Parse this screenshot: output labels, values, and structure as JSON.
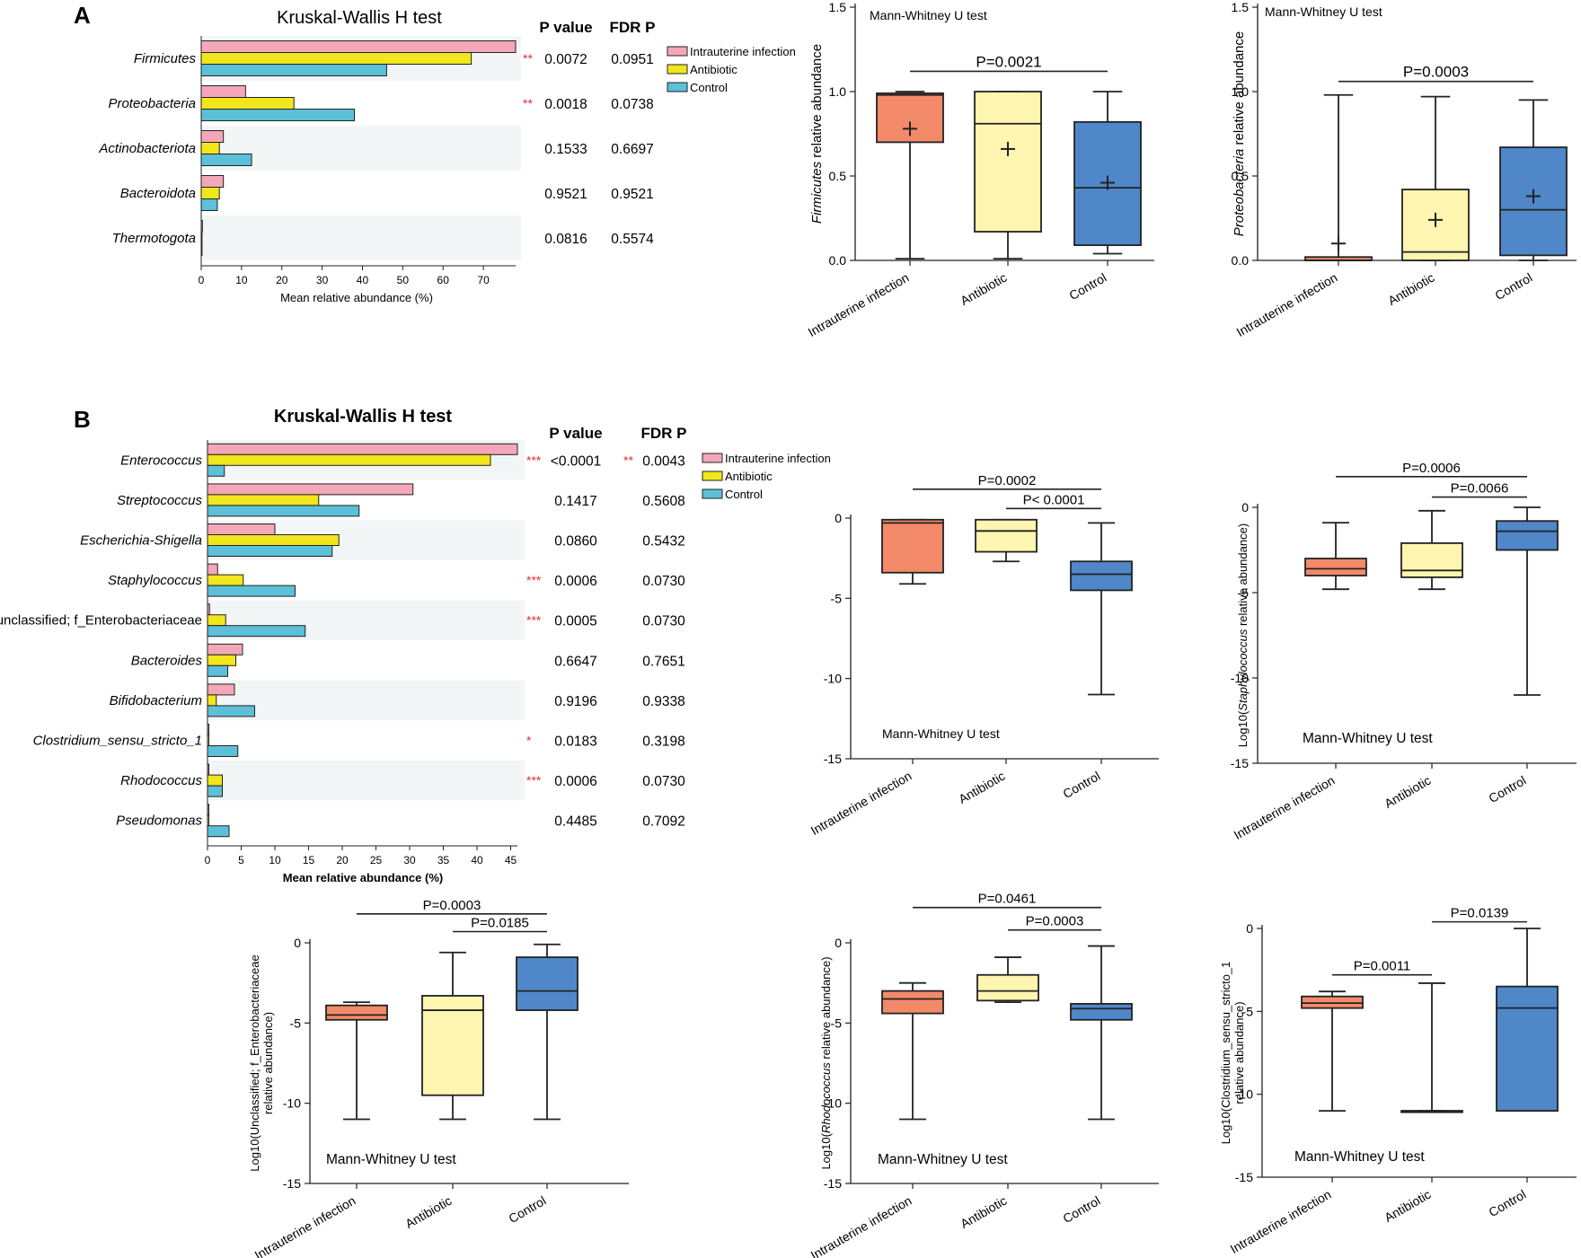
{
  "colors": {
    "intrauterine": "#f4a7b9",
    "antibiotic": "#f2e61c",
    "control": "#5bc0d8",
    "box_intrauterine": "#f28a6a",
    "box_antibiotic": "#fdf5b0",
    "box_control": "#4f87c9",
    "stripe": "#f3f6f6",
    "star": "#e03030"
  },
  "panel_a": {
    "label": "A",
    "kw": {
      "title": "Kruskal-Wallis H test",
      "p_header": "P value",
      "fdr_header": "FDR P",
      "xlabel": "Mean relative abundance (%)",
      "legend": [
        "Intrauterine infection",
        "Antibiotic",
        "Control"
      ],
      "ticks": [
        "0",
        "10",
        "20",
        "30",
        "40",
        "50",
        "60",
        "70"
      ],
      "xmax": 78,
      "rows": [
        {
          "name": "Firmicutes",
          "values": [
            78,
            67,
            46
          ],
          "sig": "**",
          "p": "0.0072",
          "fdr": "0.0951"
        },
        {
          "name": "Proteobacteria",
          "values": [
            11,
            23,
            38
          ],
          "sig": "**",
          "p": "0.0018",
          "fdr": "0.0738"
        },
        {
          "name": "Actinobacteriota",
          "values": [
            5.5,
            4.5,
            12.5
          ],
          "sig": "",
          "p": "0.1533",
          "fdr": "0.6697"
        },
        {
          "name": "Bacteroidota",
          "values": [
            5.5,
            4.5,
            4
          ],
          "sig": "",
          "p": "0.9521",
          "fdr": "0.9521"
        },
        {
          "name": "Thermotogota",
          "values": [
            0.3,
            0.2,
            0.2
          ],
          "sig": "",
          "p": "0.0816",
          "fdr": "0.5574"
        }
      ]
    },
    "box1": {
      "test_label": "Mann-Whitney U test",
      "ylabel_italic": "Firmicutes",
      "ylabel_rest": " relative abundance",
      "yticks": [
        "0.0",
        "0.5",
        "1.0",
        "1.5"
      ],
      "ylim": [
        0,
        1.5
      ],
      "categories": [
        "Intrauterine infection",
        "Antibiotic",
        "Control"
      ],
      "boxes": [
        {
          "min": 0.01,
          "q1": 0.7,
          "median": 0.98,
          "q3": 0.99,
          "max": 1.0,
          "mean": 0.78
        },
        {
          "min": 0.01,
          "q1": 0.17,
          "median": 0.81,
          "q3": 1.0,
          "max": 1.0,
          "mean": 0.66
        },
        {
          "min": 0.04,
          "q1": 0.09,
          "median": 0.43,
          "q3": 0.82,
          "max": 1.0,
          "mean": 0.46
        }
      ],
      "brackets": [
        {
          "from": 0,
          "to": 2,
          "level": 1.12,
          "label": "P=0.0021"
        }
      ]
    },
    "box2": {
      "test_label": "Mann-Whitney U test",
      "ylabel_italic": "Proteobacteria",
      "ylabel_rest": " relative abundance",
      "yticks": [
        "0.0",
        "0.5",
        "1.0",
        "1.5"
      ],
      "ylim": [
        0,
        1.5
      ],
      "categories": [
        "Intrauterine infection",
        "Antibiotic",
        "Control"
      ],
      "boxes": [
        {
          "min": 0.0,
          "q1": 0.0,
          "median": 0.0,
          "q3": 0.02,
          "max": 0.98,
          "mean": 0.1
        },
        {
          "min": 0.0,
          "q1": 0.0,
          "median": 0.05,
          "q3": 0.42,
          "max": 0.97,
          "mean": 0.24
        },
        {
          "min": 0.0,
          "q1": 0.03,
          "median": 0.3,
          "q3": 0.67,
          "max": 0.95,
          "mean": 0.38
        }
      ],
      "brackets": [
        {
          "from": 0,
          "to": 2,
          "level": 1.06,
          "label": "P=0.0003"
        }
      ]
    }
  },
  "panel_b": {
    "label": "B",
    "kw": {
      "title": "Kruskal-Wallis H test",
      "p_header": "P value",
      "fdr_header": "FDR P",
      "xlabel": "Mean relative abundance (%)",
      "legend": [
        "Intrauterine infection",
        "Antibiotic",
        "Control"
      ],
      "ticks": [
        "0",
        "5",
        "10",
        "15",
        "20",
        "25",
        "30",
        "35",
        "40",
        "45"
      ],
      "xmax": 46,
      "rows": [
        {
          "name": "Enterococcus",
          "values": [
            46,
            42,
            2.5
          ],
          "sig": "***",
          "p": "<0.0001",
          "fdr_sig": "**",
          "fdr": "0.0043"
        },
        {
          "name": "Streptococcus",
          "values": [
            30.5,
            16.5,
            22.5
          ],
          "sig": "",
          "p": "0.1417",
          "fdr_sig": "",
          "fdr": "0.5608"
        },
        {
          "name": "Escherichia-Shigella",
          "values": [
            10,
            19.5,
            18.5
          ],
          "sig": "",
          "p": "0.0860",
          "fdr_sig": "",
          "fdr": "0.5432"
        },
        {
          "name": "Staphylococcus",
          "values": [
            1.5,
            5.3,
            13
          ],
          "sig": "***",
          "p": "0.0006",
          "fdr_sig": "",
          "fdr": "0.0730"
        },
        {
          "name": "unclassified; f_Enterobacteriaceae",
          "values": [
            0.3,
            2.7,
            14.5
          ],
          "sig": "***",
          "p": "0.0005",
          "fdr_sig": "",
          "fdr": "0.0730"
        },
        {
          "name": "Bacteroides",
          "values": [
            5.2,
            4.2,
            3
          ],
          "sig": "",
          "p": "0.6647",
          "fdr_sig": "",
          "fdr": "0.7651"
        },
        {
          "name": "Bifidobacterium",
          "values": [
            4,
            1.3,
            7
          ],
          "sig": "",
          "p": "0.9196",
          "fdr_sig": "",
          "fdr": "0.9338"
        },
        {
          "name": "Clostridium_sensu_stricto_1",
          "values": [
            0.2,
            0.2,
            4.5
          ],
          "sig": "*",
          "p": "0.0183",
          "fdr_sig": "",
          "fdr": "0.3198"
        },
        {
          "name": "Rhodococcus",
          "values": [
            0.2,
            2.2,
            2.2
          ],
          "sig": "***",
          "p": "0.0006",
          "fdr_sig": "",
          "fdr": "0.0730"
        },
        {
          "name": "Pseudomonas",
          "values": [
            0.2,
            0.2,
            3.2
          ],
          "sig": "",
          "p": "0.4485",
          "fdr_sig": "",
          "fdr": "0.7092"
        }
      ]
    },
    "box_entero": {
      "test_label": "Mann-Whitney U test",
      "yticks": [
        "0",
        "-5",
        "-10",
        "-15"
      ],
      "ylim": [
        -15,
        0
      ],
      "categories": [
        "Intrauterine infection",
        "Antibiotic",
        "Control"
      ],
      "boxes": [
        {
          "min": -4.1,
          "q1": -3.4,
          "median": -0.3,
          "q3": -0.1,
          "max": -0.1
        },
        {
          "min": -2.7,
          "q1": -2.1,
          "median": -0.8,
          "q3": -0.1,
          "max": -0.1
        },
        {
          "min": -11.0,
          "q1": -4.5,
          "median": -3.5,
          "q3": -2.7,
          "max": -0.3
        }
      ],
      "brackets": [
        {
          "from": 0,
          "to": 2,
          "level": 1.8,
          "label": "P=0.0002"
        },
        {
          "from": 1,
          "to": 2,
          "level": 0.6,
          "label": "P< 0.0001"
        }
      ]
    },
    "box_staph": {
      "test_label": "Mann-Whitney U test",
      "ylabel": "Log10(",
      "ylabel_italic": "Staphylococcus",
      "ylabel_rest": " relative abundance)",
      "yticks": [
        "0",
        "-5",
        "-10",
        "-15"
      ],
      "ylim": [
        -15,
        0
      ],
      "categories": [
        "Intrauterine infection",
        "Antibiotic",
        "Control"
      ],
      "boxes": [
        {
          "min": -4.8,
          "q1": -4.0,
          "median": -3.6,
          "q3": -3.0,
          "max": -0.9
        },
        {
          "min": -4.8,
          "q1": -4.1,
          "median": -3.7,
          "q3": -2.1,
          "max": -0.2
        },
        {
          "min": -11.0,
          "q1": -2.5,
          "median": -1.4,
          "q3": -0.8,
          "max": 0.0
        }
      ],
      "brackets": [
        {
          "from": 0,
          "to": 2,
          "level": 1.8,
          "label": "P=0.0006"
        },
        {
          "from": 1,
          "to": 2,
          "level": 0.6,
          "label": "P=0.0066"
        }
      ]
    },
    "box_unclass": {
      "test_label": "Mann-Whitney U test",
      "ylabel_line1": "Log10(Unclassified; f_Enterobacteriaceae",
      "ylabel_line2": "relative abundance)",
      "yticks": [
        "0",
        "-5",
        "-10",
        "-15"
      ],
      "ylim": [
        -15,
        0
      ],
      "categories": [
        "Intrauterine infection",
        "Antibiotic",
        "Control"
      ],
      "boxes": [
        {
          "min": -11.0,
          "q1": -4.8,
          "median": -4.5,
          "q3": -3.9,
          "max": -3.7
        },
        {
          "min": -11.0,
          "q1": -9.5,
          "median": -4.2,
          "q3": -3.3,
          "max": -0.6
        },
        {
          "min": -11.0,
          "q1": -4.2,
          "median": -3.0,
          "q3": -0.9,
          "max": -0.1
        }
      ],
      "brackets": [
        {
          "from": 0,
          "to": 2,
          "level": 1.8,
          "label": "P=0.0003"
        },
        {
          "from": 1,
          "to": 2,
          "level": 0.7,
          "label": "P=0.0185"
        }
      ]
    },
    "box_rhodo": {
      "test_label": "Mann-Whitney U test",
      "ylabel": "Log10(",
      "ylabel_italic": "Rhodococcus",
      "ylabel_rest": " relative abundance)",
      "yticks": [
        "0",
        "-5",
        "-10",
        "-15"
      ],
      "ylim": [
        -15,
        0
      ],
      "categories": [
        "Intrauterine infection",
        "Antibiotic",
        "Control"
      ],
      "boxes": [
        {
          "min": -11.0,
          "q1": -4.4,
          "median": -3.5,
          "q3": -3.0,
          "max": -2.5
        },
        {
          "min": -3.7,
          "q1": -3.6,
          "median": -3.0,
          "q3": -2.0,
          "max": -0.9
        },
        {
          "min": -11.0,
          "q1": -4.8,
          "median": -4.1,
          "q3": -3.8,
          "max": -0.2
        }
      ],
      "brackets": [
        {
          "from": 0,
          "to": 2,
          "level": 2.2,
          "label": "P=0.0461"
        },
        {
          "from": 1,
          "to": 2,
          "level": 0.8,
          "label": "P=0.0003"
        }
      ]
    },
    "box_clost": {
      "test_label": "Mann-Whitney U test",
      "ylabel_line1": "Log10(Clostridium_sensu_stricto_1",
      "ylabel_line2": "relative abundance)",
      "yticks": [
        "0",
        "-5",
        "-10",
        "-15"
      ],
      "ylim": [
        -15,
        0
      ],
      "categories": [
        "Intrauterine infection",
        "Antibiotic",
        "Control"
      ],
      "boxes": [
        {
          "min": -11.0,
          "q1": -4.8,
          "median": -4.5,
          "q3": -4.1,
          "max": -3.8
        },
        {
          "min": -11.0,
          "q1": -11.0,
          "median": -11.0,
          "q3": -11.0,
          "max": -3.3
        },
        {
          "min": -11.0,
          "q1": -11.0,
          "median": -4.8,
          "q3": -3.5,
          "max": 0.0
        }
      ],
      "brackets": [
        {
          "from": 0,
          "to": 1,
          "level": -2.8,
          "label": "P=0.0011"
        },
        {
          "from": 1,
          "to": 2,
          "level": 0.4,
          "label": "P=0.0139"
        }
      ]
    }
  }
}
